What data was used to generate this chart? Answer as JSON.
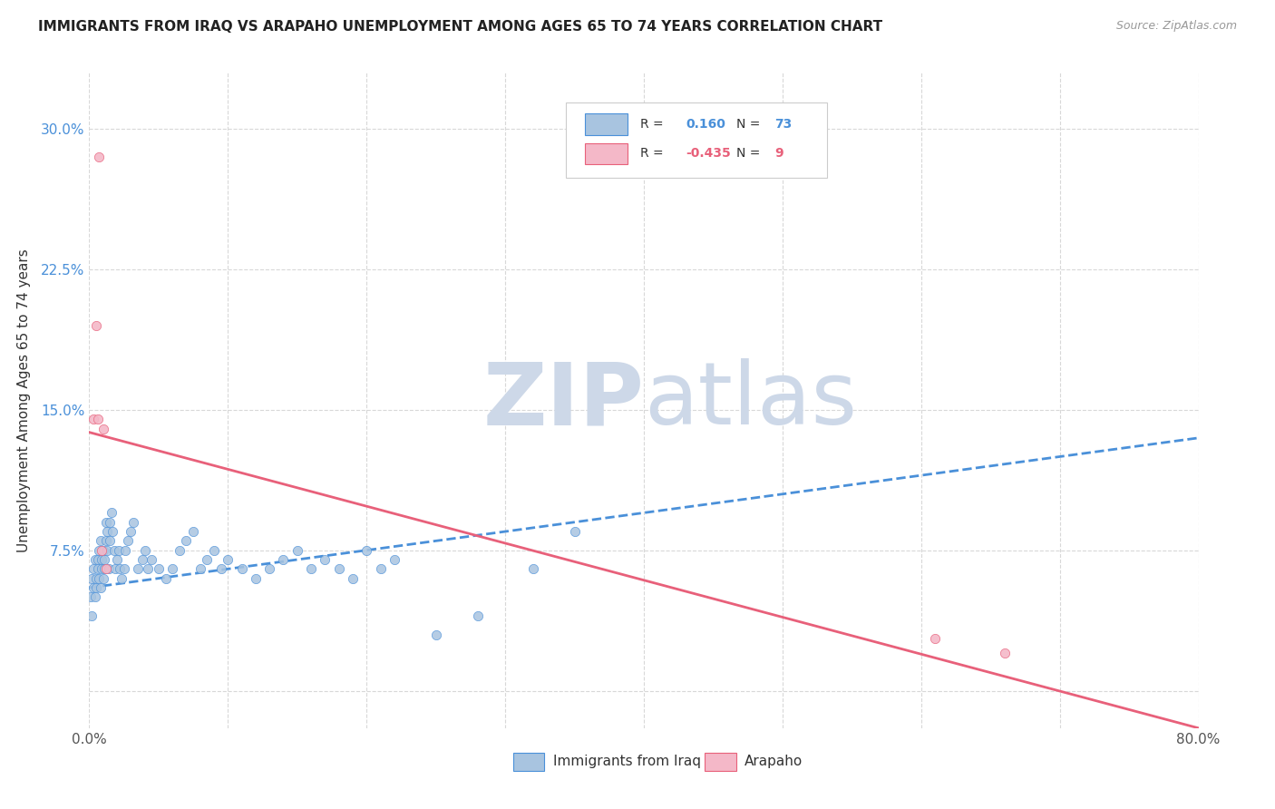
{
  "title": "IMMIGRANTS FROM IRAQ VS ARAPAHO UNEMPLOYMENT AMONG AGES 65 TO 74 YEARS CORRELATION CHART",
  "source": "Source: ZipAtlas.com",
  "ylabel": "Unemployment Among Ages 65 to 74 years",
  "xlim": [
    0.0,
    0.8
  ],
  "ylim": [
    -0.02,
    0.33
  ],
  "yticks": [
    0.0,
    0.075,
    0.15,
    0.225,
    0.3
  ],
  "ytick_labels": [
    "",
    "7.5%",
    "15.0%",
    "22.5%",
    "30.0%"
  ],
  "xticks": [
    0.0,
    0.1,
    0.2,
    0.3,
    0.4,
    0.5,
    0.6,
    0.7,
    0.8
  ],
  "xtick_labels": [
    "0.0%",
    "",
    "",
    "",
    "",
    "",
    "",
    "",
    "80.0%"
  ],
  "iraq_R": 0.16,
  "iraq_N": 73,
  "arapaho_R": -0.435,
  "arapaho_N": 9,
  "iraq_color": "#a8c4e0",
  "arapaho_color": "#f4b8c8",
  "iraq_line_color": "#4a90d9",
  "arapaho_line_color": "#e8607a",
  "background_color": "#ffffff",
  "grid_color": "#d8d8d8",
  "watermark_zip": "ZIP",
  "watermark_atlas": "atlas",
  "watermark_color": "#cdd8e8",
  "iraq_x": [
    0.001,
    0.002,
    0.002,
    0.003,
    0.003,
    0.004,
    0.004,
    0.005,
    0.005,
    0.006,
    0.006,
    0.007,
    0.007,
    0.008,
    0.008,
    0.009,
    0.009,
    0.01,
    0.01,
    0.011,
    0.011,
    0.012,
    0.012,
    0.013,
    0.013,
    0.014,
    0.015,
    0.015,
    0.016,
    0.017,
    0.018,
    0.019,
    0.02,
    0.021,
    0.022,
    0.023,
    0.025,
    0.026,
    0.028,
    0.03,
    0.032,
    0.035,
    0.038,
    0.04,
    0.042,
    0.045,
    0.05,
    0.055,
    0.06,
    0.065,
    0.07,
    0.075,
    0.08,
    0.085,
    0.09,
    0.095,
    0.1,
    0.11,
    0.12,
    0.13,
    0.14,
    0.15,
    0.16,
    0.17,
    0.18,
    0.19,
    0.2,
    0.21,
    0.22,
    0.25,
    0.28,
    0.32,
    0.35
  ],
  "iraq_y": [
    0.05,
    0.06,
    0.04,
    0.055,
    0.065,
    0.05,
    0.07,
    0.06,
    0.055,
    0.065,
    0.07,
    0.06,
    0.075,
    0.055,
    0.08,
    0.065,
    0.07,
    0.06,
    0.075,
    0.07,
    0.065,
    0.08,
    0.09,
    0.085,
    0.075,
    0.065,
    0.08,
    0.09,
    0.095,
    0.085,
    0.075,
    0.065,
    0.07,
    0.075,
    0.065,
    0.06,
    0.065,
    0.075,
    0.08,
    0.085,
    0.09,
    0.065,
    0.07,
    0.075,
    0.065,
    0.07,
    0.065,
    0.06,
    0.065,
    0.075,
    0.08,
    0.085,
    0.065,
    0.07,
    0.075,
    0.065,
    0.07,
    0.065,
    0.06,
    0.065,
    0.07,
    0.075,
    0.065,
    0.07,
    0.065,
    0.06,
    0.075,
    0.065,
    0.07,
    0.03,
    0.04,
    0.065,
    0.085
  ],
  "arapaho_x": [
    0.003,
    0.005,
    0.006,
    0.007,
    0.009,
    0.01,
    0.012,
    0.61,
    0.66
  ],
  "arapaho_y": [
    0.145,
    0.195,
    0.145,
    0.285,
    0.075,
    0.14,
    0.065,
    0.028,
    0.02
  ],
  "iraq_trend_x": [
    0.0,
    0.8
  ],
  "iraq_trend_y": [
    0.055,
    0.135
  ],
  "arapaho_trend_x": [
    0.0,
    0.8
  ],
  "arapaho_trend_y": [
    0.138,
    -0.02
  ]
}
